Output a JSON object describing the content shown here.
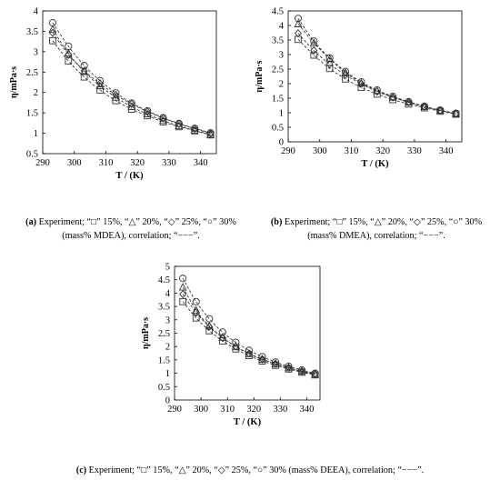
{
  "panels": [
    {
      "caption_tag": "(a)",
      "caption_text": " Experiment; “□” 15%, “△” 20%, “◇” 25%, “○” 30% (mass% MDEA), correlation; “−−−”.",
      "chart_data": {
        "type": "scatter",
        "title": "",
        "xlabel": "T / (K)",
        "ylabel": "η/mPa·s",
        "xlim": [
          290,
          345
        ],
        "ylim": [
          0.5,
          4
        ],
        "xticks": [
          "290",
          "300",
          "310",
          "320",
          "330",
          "340"
        ],
        "yticks": [
          "0.5",
          "1",
          "1.5",
          "2",
          "2.5",
          "3",
          "3.5",
          "4"
        ],
        "x": [
          293.15,
          298.15,
          303.15,
          308.15,
          313.15,
          318.15,
          323.15,
          328.15,
          333.15,
          338.15,
          343.15
        ],
        "series": [
          {
            "name": "15%",
            "marker": "square",
            "values": [
              3.27,
              2.77,
              2.38,
              2.06,
              1.8,
              1.59,
              1.43,
              1.28,
              1.16,
              1.06,
              0.96
            ]
          },
          {
            "name": "20%",
            "marker": "triangle",
            "values": [
              3.55,
              2.96,
              2.51,
              2.16,
              1.88,
              1.65,
              1.47,
              1.31,
              1.18,
              1.07,
              0.97
            ]
          },
          {
            "name": "25%",
            "marker": "diamond",
            "values": [
              3.46,
              2.93,
              2.53,
              2.22,
              1.94,
              1.72,
              1.53,
              1.37,
              1.23,
              1.11,
              1.0
            ]
          },
          {
            "name": "30%",
            "marker": "circle",
            "values": [
              3.71,
              3.13,
              2.66,
              2.29,
              1.99,
              1.74,
              1.55,
              1.38,
              1.24,
              1.12,
              1.01
            ]
          }
        ]
      }
    },
    {
      "caption_tag": "(b)",
      "caption_text": " Experiment; “□” 15%, “△” 20%, “◇” 25%, “○” 30% (mass% DMEA), correlation; “−−−”.",
      "chart_data": {
        "type": "scatter",
        "title": "",
        "xlabel": "T / (K)",
        "ylabel": "η/mPa·s",
        "xlim": [
          290,
          345
        ],
        "ylim": [
          0,
          4.5
        ],
        "xticks": [
          "290",
          "300",
          "310",
          "320",
          "330",
          "340"
        ],
        "yticks": [
          "0",
          "0.5",
          "1",
          "1.5",
          "2",
          "2.5",
          "3",
          "3.5",
          "4",
          "4.5"
        ],
        "x": [
          293.15,
          298.15,
          303.15,
          308.15,
          313.15,
          318.15,
          323.15,
          328.15,
          333.15,
          338.15,
          343.15
        ],
        "series": [
          {
            "name": "15%",
            "marker": "square",
            "values": [
              3.52,
              2.98,
              2.52,
              2.16,
              1.87,
              1.64,
              1.45,
              1.3,
              1.17,
              1.05,
              0.95
            ]
          },
          {
            "name": "20%",
            "marker": "triangle",
            "values": [
              4.05,
              3.4,
              2.85,
              2.38,
              2.02,
              1.75,
              1.53,
              1.36,
              1.21,
              1.08,
              0.97
            ]
          },
          {
            "name": "25%",
            "marker": "diamond",
            "values": [
              3.73,
              3.14,
              2.67,
              2.3,
              1.99,
              1.73,
              1.53,
              1.36,
              1.21,
              1.08,
              0.97
            ]
          },
          {
            "name": "30%",
            "marker": "circle",
            "values": [
              4.24,
              3.46,
              2.88,
              2.42,
              2.06,
              1.78,
              1.56,
              1.38,
              1.22,
              1.09,
              0.98
            ]
          }
        ]
      }
    },
    {
      "caption_tag": "(c)",
      "caption_text": " Experiment; “□” 15%, “△” 20%, “◇” 25%, “○” 30% (mass% DEEA), correlation; “−−−”.",
      "chart_data": {
        "type": "scatter",
        "title": "",
        "xlabel": "T / (K)",
        "ylabel": "η/mPa·s",
        "xlim": [
          290,
          345
        ],
        "ylim": [
          0,
          5
        ],
        "xticks": [
          "290",
          "300",
          "310",
          "320",
          "330",
          "340"
        ],
        "yticks": [
          "0",
          "0.5",
          "1",
          "1.5",
          "2",
          "2.5",
          "3",
          "3.5",
          "4",
          "4.5",
          "5"
        ],
        "x": [
          293.15,
          298.15,
          303.15,
          308.15,
          313.15,
          318.15,
          323.15,
          328.15,
          333.15,
          338.15,
          343.15
        ],
        "series": [
          {
            "name": "15%",
            "marker": "square",
            "values": [
              3.68,
              3.07,
              2.59,
              2.21,
              1.91,
              1.66,
              1.46,
              1.3,
              1.16,
              1.04,
              0.94
            ]
          },
          {
            "name": "20%",
            "marker": "triangle",
            "values": [
              4.22,
              3.36,
              2.77,
              2.34,
              2.0,
              1.73,
              1.52,
              1.35,
              1.2,
              1.07,
              0.96
            ]
          },
          {
            "name": "25%",
            "marker": "diamond",
            "values": [
              3.96,
              3.27,
              2.74,
              2.33,
              2.0,
              1.74,
              1.53,
              1.36,
              1.21,
              1.08,
              0.97
            ]
          },
          {
            "name": "30%",
            "marker": "circle",
            "values": [
              4.55,
              3.68,
              3.04,
              2.54,
              2.16,
              1.86,
              1.62,
              1.42,
              1.26,
              1.12,
              1.0
            ]
          }
        ]
      }
    }
  ]
}
